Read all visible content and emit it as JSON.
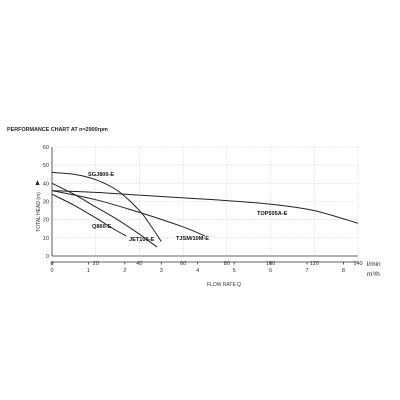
{
  "chart_data": {
    "type": "line",
    "title": "PERFORMANCE CHART AT n=2900rpm",
    "ylabel": "TOTAL HEAD (m)",
    "xlabel": "FLOW RATE Q",
    "x_unit": "l/min",
    "x2_unit": "m³/h",
    "xlim": [
      0,
      140
    ],
    "ylim": [
      0,
      60
    ],
    "x_ticks": [
      0,
      20,
      40,
      60,
      80,
      100,
      120,
      140
    ],
    "y_ticks": [
      0,
      10,
      20,
      30,
      40,
      50,
      60
    ],
    "x2_ticks": [
      0,
      1,
      2,
      3,
      4,
      5,
      6,
      7,
      8
    ],
    "grid": true,
    "series": [
      {
        "name": "SGJ800-E",
        "x": [
          0,
          10,
          20,
          30,
          40,
          45,
          50
        ],
        "y": [
          46,
          45,
          42,
          36,
          25,
          17,
          8
        ]
      },
      {
        "name": "TOP505A-E",
        "x": [
          0,
          20,
          40,
          60,
          80,
          100,
          120,
          140
        ],
        "y": [
          36,
          35,
          33.5,
          32,
          30.5,
          28.5,
          25,
          18
        ]
      },
      {
        "name": "Q860-E",
        "x": [
          0,
          10,
          20,
          28,
          34
        ],
        "y": [
          34,
          28,
          21,
          15,
          11
        ]
      },
      {
        "name": "JET100-E",
        "x": [
          0,
          10,
          20,
          30,
          40,
          48
        ],
        "y": [
          40,
          34,
          27,
          20,
          12,
          5
        ]
      },
      {
        "name": "TJSM/10M-E",
        "x": [
          0,
          20,
          40,
          60,
          70
        ],
        "y": [
          36,
          31,
          24,
          16,
          11
        ]
      }
    ]
  }
}
